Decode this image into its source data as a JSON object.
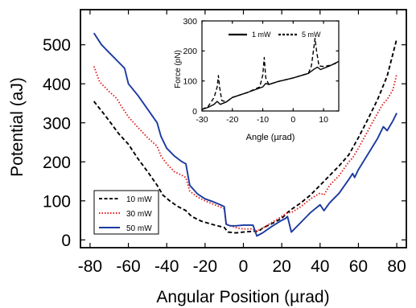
{
  "chart_data": [
    {
      "id": "main",
      "type": "line",
      "xlabel": "Angular Position (µrad)",
      "ylabel": "Potential (aJ)",
      "xlim": [
        -85,
        85
      ],
      "ylim": [
        -20,
        590
      ],
      "xticks": [
        -80,
        -60,
        -40,
        -20,
        0,
        20,
        40,
        60,
        80
      ],
      "yticks": [
        0,
        100,
        200,
        300,
        400,
        500
      ],
      "grid": false,
      "legend_position": "bottom-left",
      "series": [
        {
          "name": "10 mW",
          "color": "#000000",
          "dash": "dashed",
          "points": [
            [
              -78,
              355
            ],
            [
              -72,
              318
            ],
            [
              -65,
              272
            ],
            [
              -60,
              245
            ],
            [
              -55,
              208
            ],
            [
              -50,
              175
            ],
            [
              -45,
              140
            ],
            [
              -42,
              115
            ],
            [
              -38,
              98
            ],
            [
              -34,
              85
            ],
            [
              -30,
              75
            ],
            [
              -27,
              60
            ],
            [
              -22,
              48
            ],
            [
              -15,
              38
            ],
            [
              -10,
              32
            ],
            [
              -8,
              20
            ],
            [
              -4,
              18
            ],
            [
              0,
              20
            ],
            [
              5,
              22
            ],
            [
              8,
              22
            ],
            [
              10,
              30
            ],
            [
              15,
              42
            ],
            [
              20,
              55
            ],
            [
              23,
              70
            ],
            [
              25,
              78
            ],
            [
              30,
              95
            ],
            [
              35,
              115
            ],
            [
              40,
              140
            ],
            [
              45,
              165
            ],
            [
              50,
              190
            ],
            [
              55,
              218
            ],
            [
              60,
              262
            ],
            [
              65,
              310
            ],
            [
              70,
              360
            ],
            [
              75,
              420
            ],
            [
              80,
              515
            ]
          ]
        },
        {
          "name": "30 mW",
          "color": "#e02020",
          "dash": "dotted",
          "points": [
            [
              -78,
              445
            ],
            [
              -75,
              405
            ],
            [
              -70,
              380
            ],
            [
              -66,
              362
            ],
            [
              -64,
              345
            ],
            [
              -60,
              315
            ],
            [
              -55,
              288
            ],
            [
              -50,
              262
            ],
            [
              -45,
              240
            ],
            [
              -43,
              215
            ],
            [
              -40,
              195
            ],
            [
              -36,
              175
            ],
            [
              -32,
              165
            ],
            [
              -30,
              160
            ],
            [
              -28,
              125
            ],
            [
              -24,
              110
            ],
            [
              -20,
              100
            ],
            [
              -15,
              90
            ],
            [
              -10,
              80
            ],
            [
              -9,
              40
            ],
            [
              -6,
              35
            ],
            [
              -3,
              30
            ],
            [
              0,
              28
            ],
            [
              3,
              28
            ],
            [
              5,
              28
            ],
            [
              7,
              22
            ],
            [
              10,
              30
            ],
            [
              15,
              45
            ],
            [
              20,
              60
            ],
            [
              23,
              70
            ],
            [
              25,
              70
            ],
            [
              30,
              85
            ],
            [
              35,
              105
            ],
            [
              40,
              120
            ],
            [
              42,
              115
            ],
            [
              45,
              140
            ],
            [
              50,
              165
            ],
            [
              55,
              200
            ],
            [
              57,
              210
            ],
            [
              60,
              235
            ],
            [
              65,
              280
            ],
            [
              70,
              325
            ],
            [
              73,
              350
            ],
            [
              75,
              360
            ],
            [
              78,
              385
            ],
            [
              80,
              425
            ]
          ]
        },
        {
          "name": "50 mW",
          "color": "#1a3aa0",
          "dash": "solid",
          "points": [
            [
              -78,
              530
            ],
            [
              -74,
              500
            ],
            [
              -70,
              480
            ],
            [
              -65,
              455
            ],
            [
              -62,
              440
            ],
            [
              -60,
              400
            ],
            [
              -55,
              370
            ],
            [
              -50,
              335
            ],
            [
              -45,
              300
            ],
            [
              -43,
              265
            ],
            [
              -40,
              235
            ],
            [
              -36,
              215
            ],
            [
              -32,
              200
            ],
            [
              -30,
              195
            ],
            [
              -28,
              140
            ],
            [
              -24,
              118
            ],
            [
              -20,
              105
            ],
            [
              -16,
              98
            ],
            [
              -12,
              90
            ],
            [
              -10,
              85
            ],
            [
              -9,
              40
            ],
            [
              -7,
              36
            ],
            [
              -4,
              36
            ],
            [
              0,
              38
            ],
            [
              3,
              38
            ],
            [
              5,
              38
            ],
            [
              7,
              10
            ],
            [
              10,
              18
            ],
            [
              15,
              35
            ],
            [
              20,
              50
            ],
            [
              22,
              55
            ],
            [
              23,
              60
            ],
            [
              25,
              20
            ],
            [
              30,
              45
            ],
            [
              35,
              70
            ],
            [
              40,
              90
            ],
            [
              42,
              75
            ],
            [
              45,
              95
            ],
            [
              50,
              120
            ],
            [
              55,
              155
            ],
            [
              57,
              170
            ],
            [
              58,
              160
            ],
            [
              60,
              180
            ],
            [
              65,
              220
            ],
            [
              70,
              260
            ],
            [
              73,
              290
            ],
            [
              75,
              280
            ],
            [
              78,
              305
            ],
            [
              80,
              325
            ]
          ]
        }
      ]
    },
    {
      "id": "inset",
      "type": "line",
      "xlabel": "Angle (µrad)",
      "ylabel": "Force (pN)",
      "xlim": [
        -30,
        15
      ],
      "ylim": [
        0,
        300
      ],
      "xticks": [
        -30,
        -20,
        -10,
        0,
        10
      ],
      "yticks": [
        0,
        100,
        200,
        300
      ],
      "grid": false,
      "legend_position": "top",
      "series": [
        {
          "name": "1 mW",
          "color": "#000000",
          "dash": "solid",
          "points": [
            [
              -30,
              5
            ],
            [
              -28,
              12
            ],
            [
              -26,
              22
            ],
            [
              -25,
              32
            ],
            [
              -24,
              22
            ],
            [
              -22,
              30
            ],
            [
              -20,
              45
            ],
            [
              -15,
              62
            ],
            [
              -10,
              80
            ],
            [
              -9,
              92
            ],
            [
              -8,
              88
            ],
            [
              -5,
              98
            ],
            [
              0,
              110
            ],
            [
              5,
              125
            ],
            [
              7,
              140
            ],
            [
              8,
              146
            ],
            [
              9,
              138
            ],
            [
              12,
              150
            ],
            [
              15,
              165
            ]
          ]
        },
        {
          "name": "5 mW",
          "color": "#000000",
          "dash": "dashed",
          "points": [
            [
              -30,
              5
            ],
            [
              -28,
              15
            ],
            [
              -26,
              45
            ],
            [
              -25,
              80
            ],
            [
              -24.6,
              118
            ],
            [
              -24.2,
              80
            ],
            [
              -23.5,
              35
            ],
            [
              -22,
              30
            ],
            [
              -20,
              45
            ],
            [
              -15,
              62
            ],
            [
              -11,
              80
            ],
            [
              -10,
              120
            ],
            [
              -9.5,
              178
            ],
            [
              -9,
              110
            ],
            [
              -8,
              88
            ],
            [
              -5,
              98
            ],
            [
              0,
              110
            ],
            [
              5,
              125
            ],
            [
              6,
              150
            ],
            [
              6.8,
              210
            ],
            [
              7.2,
              242
            ],
            [
              7.7,
              200
            ],
            [
              8.5,
              150
            ],
            [
              10,
              148
            ],
            [
              12,
              152
            ],
            [
              15,
              162
            ]
          ]
        }
      ]
    }
  ]
}
